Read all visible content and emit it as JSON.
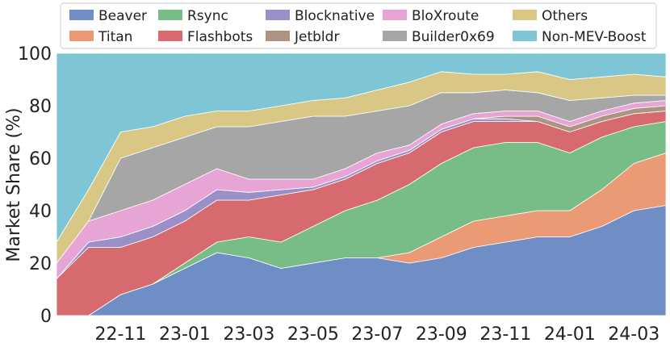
{
  "chart_data": {
    "type": "area",
    "stacked": true,
    "xlabel": "",
    "ylabel": "Market Share (%)",
    "ylim": [
      0,
      100
    ],
    "yticks": [
      "0",
      "20",
      "40",
      "60",
      "80",
      "100"
    ],
    "xticks": [
      "22-11",
      "23-01",
      "23-03",
      "23-05",
      "23-07",
      "23-09",
      "23-11",
      "24-01",
      "24-03"
    ],
    "grid": true,
    "legend_position": "top",
    "x": [
      "22-09",
      "22-10",
      "22-11",
      "22-12",
      "23-01",
      "23-02",
      "23-03",
      "23-04",
      "23-05",
      "23-06",
      "23-07",
      "23-08",
      "23-09",
      "23-10",
      "23-11",
      "23-12",
      "24-01",
      "24-02",
      "24-03",
      "24-04"
    ],
    "series": [
      {
        "name": "Beaver",
        "color": "#6f8ec5",
        "values": [
          0,
          0,
          8,
          12,
          18,
          24,
          22,
          18,
          20,
          22,
          22,
          20,
          22,
          26,
          28,
          30,
          30,
          34,
          40,
          42
        ]
      },
      {
        "name": "Titan",
        "color": "#ea9a74",
        "values": [
          0,
          0,
          0,
          0,
          0,
          0,
          0,
          0,
          0,
          0,
          0,
          4,
          8,
          10,
          10,
          10,
          10,
          14,
          18,
          20
        ]
      },
      {
        "name": "Rsync",
        "color": "#78bd88",
        "values": [
          0,
          0,
          0,
          0,
          2,
          4,
          8,
          10,
          14,
          18,
          22,
          26,
          28,
          28,
          28,
          26,
          22,
          20,
          14,
          12
        ]
      },
      {
        "name": "Flashbots",
        "color": "#d76a6e",
        "values": [
          14,
          26,
          18,
          18,
          16,
          16,
          14,
          18,
          14,
          12,
          14,
          12,
          12,
          10,
          8,
          8,
          8,
          6,
          5,
          4
        ]
      },
      {
        "name": "Blocknative",
        "color": "#9a8fc7",
        "values": [
          0,
          2,
          4,
          4,
          4,
          4,
          3,
          2,
          1,
          1,
          1,
          1,
          1,
          1,
          1,
          0,
          0,
          0,
          0,
          0
        ]
      },
      {
        "name": "Jetbldr",
        "color": "#ac9382",
        "values": [
          0,
          0,
          0,
          0,
          0,
          0,
          0,
          0,
          0,
          0,
          0,
          0,
          0,
          0,
          1,
          2,
          2,
          2,
          2,
          2
        ]
      },
      {
        "name": "BloXroute",
        "color": "#e6a5d5",
        "values": [
          6,
          8,
          10,
          10,
          10,
          8,
          5,
          4,
          3,
          3,
          3,
          2,
          2,
          2,
          2,
          2,
          2,
          2,
          2,
          2
        ]
      },
      {
        "name": "Builder0x69",
        "color": "#a6a6a6",
        "values": [
          0,
          0,
          20,
          20,
          18,
          16,
          20,
          22,
          24,
          20,
          16,
          15,
          12,
          8,
          8,
          7,
          8,
          5,
          3,
          2
        ]
      },
      {
        "name": "Others",
        "color": "#d8c785",
        "values": [
          8,
          12,
          10,
          8,
          8,
          6,
          6,
          6,
          6,
          7,
          8,
          9,
          8,
          7,
          6,
          8,
          8,
          8,
          8,
          7
        ]
      },
      {
        "name": "Non-MEV-Boost",
        "color": "#7ec5d6",
        "values": [
          72,
          52,
          30,
          28,
          24,
          22,
          22,
          20,
          18,
          17,
          14,
          11,
          7,
          8,
          8,
          7,
          10,
          9,
          8,
          9
        ]
      }
    ],
    "legend_order": [
      "Beaver",
      "Rsync",
      "Blocknative",
      "BloXroute",
      "Others",
      "Titan",
      "Flashbots",
      "Jetbldr",
      "Builder0x69",
      "Non-MEV-Boost"
    ]
  }
}
